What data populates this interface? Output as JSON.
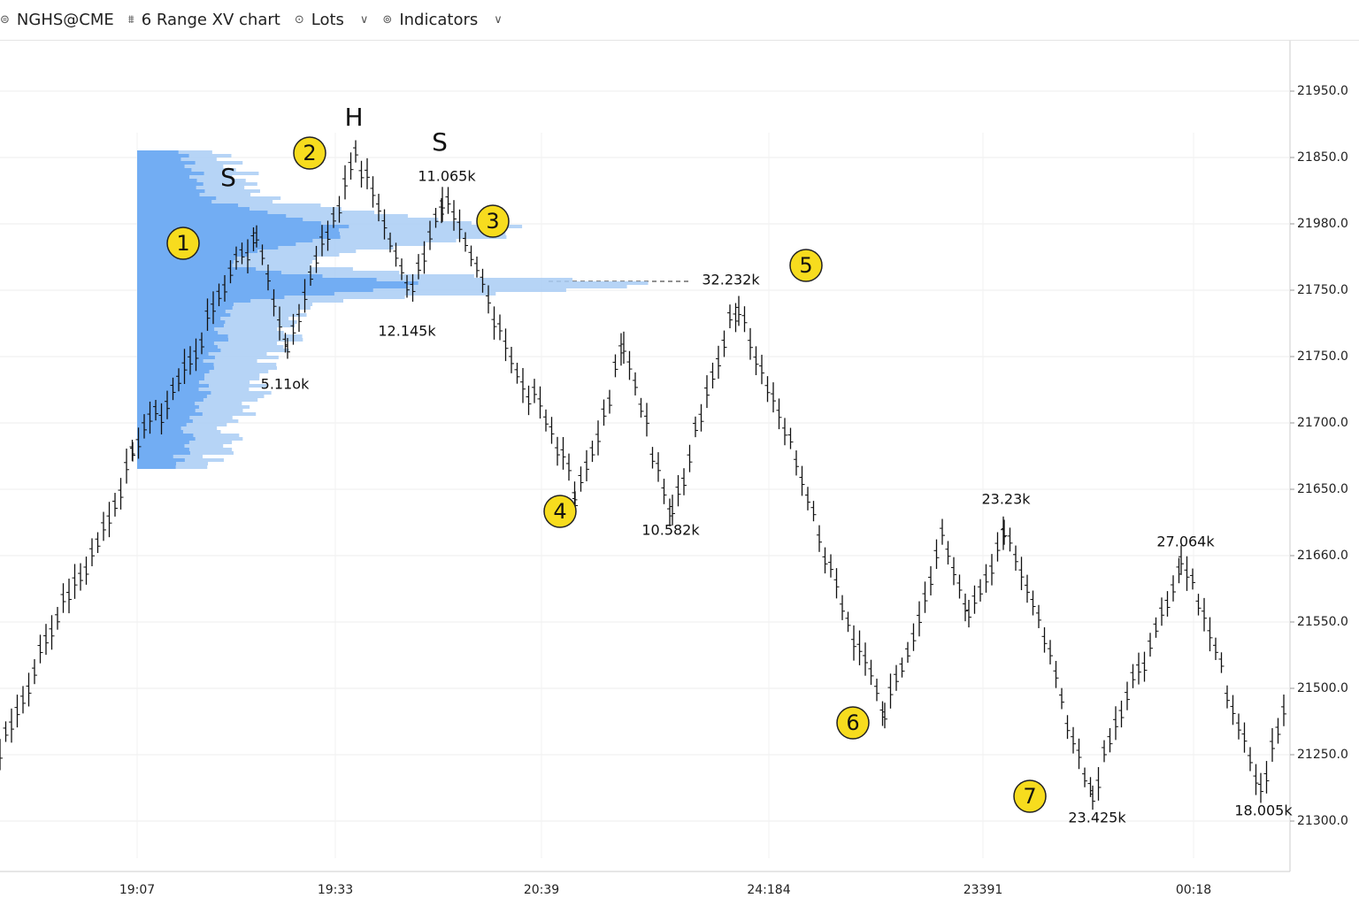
{
  "toolbar": {
    "symbol": "NGHS@CME",
    "chart_type": "6 Range XV chart",
    "units": "Lots",
    "indicators": "Indicators"
  },
  "y_axis": [
    "21950.0",
    "21850.0",
    "21980.0",
    "21750.0",
    "21750.0",
    "21700.0",
    "21650.0",
    "21660.0",
    "21550.0",
    "21500.0",
    "21250.0",
    "21300.0"
  ],
  "x_axis": [
    "19:07",
    "19:33",
    "20:39",
    "24:184",
    "23391",
    "00:18"
  ],
  "pattern_labels": [
    "S",
    "H",
    "S"
  ],
  "markers": [
    "1",
    "2",
    "3",
    "4",
    "5",
    "6",
    "7"
  ],
  "volume_labels": [
    "11.065k",
    "12.145k",
    "5.11ok",
    "32.232k",
    "10.582k",
    "23.23k",
    "27.064k",
    "23.425k",
    "18.005k"
  ]
}
